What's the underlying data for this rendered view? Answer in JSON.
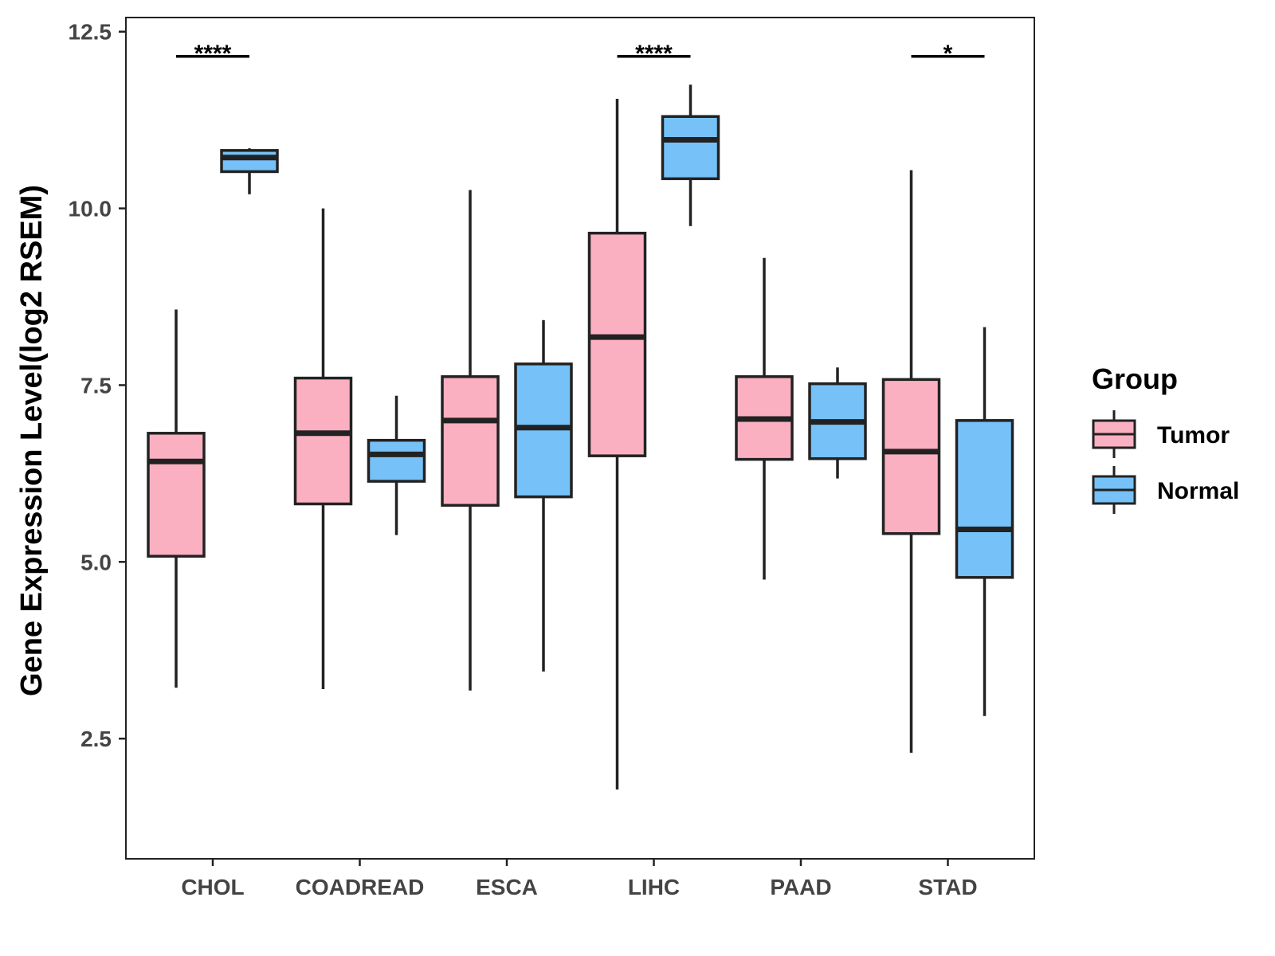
{
  "chart_data": {
    "type": "boxplot",
    "title": "",
    "xlabel": "",
    "ylabel": "Gene Expression Level(log2 RSEM)",
    "ylim": [
      0.8,
      12.7
    ],
    "yticks": [
      2.5,
      5.0,
      7.5,
      10.0,
      12.5
    ],
    "ytick_labels": [
      "2.5",
      "5.0",
      "7.5",
      "10.0",
      "12.5"
    ],
    "categories": [
      "CHOL",
      "COADREAD",
      "ESCA",
      "LIHC",
      "PAAD",
      "STAD"
    ],
    "legend": {
      "title": "Group",
      "position": "right",
      "entries": [
        {
          "name": "Tumor",
          "color": "#FBB0C1"
        },
        {
          "name": "Normal",
          "color": "#76C1F8"
        }
      ]
    },
    "series": [
      {
        "name": "Tumor",
        "color": "#FBB0C1",
        "boxes": [
          {
            "category": "CHOL",
            "min": 3.22,
            "q1": 5.08,
            "median": 6.42,
            "q3": 6.82,
            "max": 8.57
          },
          {
            "category": "COADREAD",
            "min": 3.2,
            "q1": 5.82,
            "median": 6.82,
            "q3": 7.6,
            "max": 10.0
          },
          {
            "category": "ESCA",
            "min": 3.18,
            "q1": 5.8,
            "median": 7.0,
            "q3": 7.62,
            "max": 10.26
          },
          {
            "category": "LIHC",
            "min": 1.78,
            "q1": 6.5,
            "median": 8.18,
            "q3": 9.65,
            "max": 11.55
          },
          {
            "category": "PAAD",
            "min": 4.75,
            "q1": 6.45,
            "median": 7.02,
            "q3": 7.62,
            "max": 9.3
          },
          {
            "category": "STAD",
            "min": 2.3,
            "q1": 5.4,
            "median": 6.56,
            "q3": 7.58,
            "max": 10.54
          }
        ]
      },
      {
        "name": "Normal",
        "color": "#76C1F8",
        "boxes": [
          {
            "category": "CHOL",
            "min": 10.2,
            "q1": 10.52,
            "median": 10.72,
            "q3": 10.82,
            "max": 10.85
          },
          {
            "category": "COADREAD",
            "min": 5.38,
            "q1": 6.14,
            "median": 6.52,
            "q3": 6.72,
            "max": 7.35
          },
          {
            "category": "ESCA",
            "min": 3.45,
            "q1": 5.92,
            "median": 6.9,
            "q3": 7.8,
            "max": 8.42
          },
          {
            "category": "LIHC",
            "min": 9.75,
            "q1": 10.42,
            "median": 10.97,
            "q3": 11.3,
            "max": 11.75
          },
          {
            "category": "PAAD",
            "min": 6.18,
            "q1": 6.46,
            "median": 6.98,
            "q3": 7.52,
            "max": 7.75
          },
          {
            "category": "STAD",
            "min": 2.82,
            "q1": 4.78,
            "median": 5.46,
            "q3": 7.0,
            "max": 8.32
          }
        ]
      }
    ],
    "annotations": [
      {
        "category": "CHOL",
        "label": "****",
        "y": 12.15
      },
      {
        "category": "LIHC",
        "label": "****",
        "y": 12.15
      },
      {
        "category": "STAD",
        "label": "*",
        "y": 12.15
      }
    ]
  }
}
